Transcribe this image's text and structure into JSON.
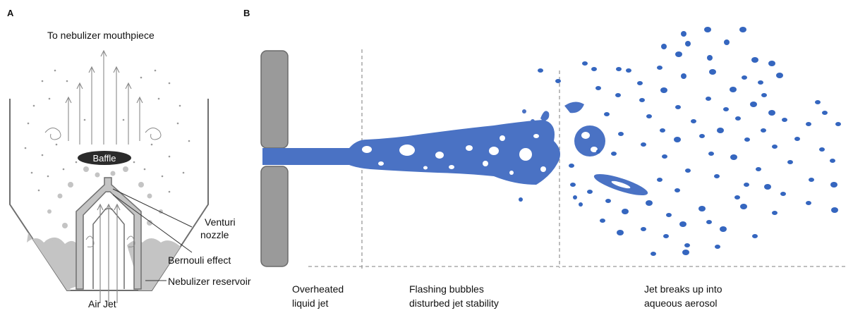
{
  "panel_a": {
    "letter": "A",
    "top_label": "To nebulizer mouthpiece",
    "baffle": "Baffle",
    "venturi_line1": "Venturi",
    "venturi_line2": "nozzle",
    "bernoulli": "Bernouli effect",
    "reservoir": "Nebulizer reservoir",
    "air_jet": "Air Jet",
    "colors": {
      "outline": "#6f6f6f",
      "liquid": "#c4c4c4",
      "baffle": "#2b2b2b",
      "droplet": "#8c8c8c"
    }
  },
  "panel_b": {
    "letter": "B",
    "stage1_line1": "Overheated",
    "stage1_line2": "liquid jet",
    "stage2_line1": "Flashing bubbles",
    "stage2_line2": "disturbed jet stability",
    "stage3_line1": "Jet breaks up into",
    "stage3_line2": "aqueous aerosol",
    "colors": {
      "jet": "#4a72c4",
      "jet_dark": "#2f5aa8",
      "nozzle": "#9a9a9a",
      "nozzle_edge": "#6a6a6a",
      "divider": "#999999"
    }
  }
}
